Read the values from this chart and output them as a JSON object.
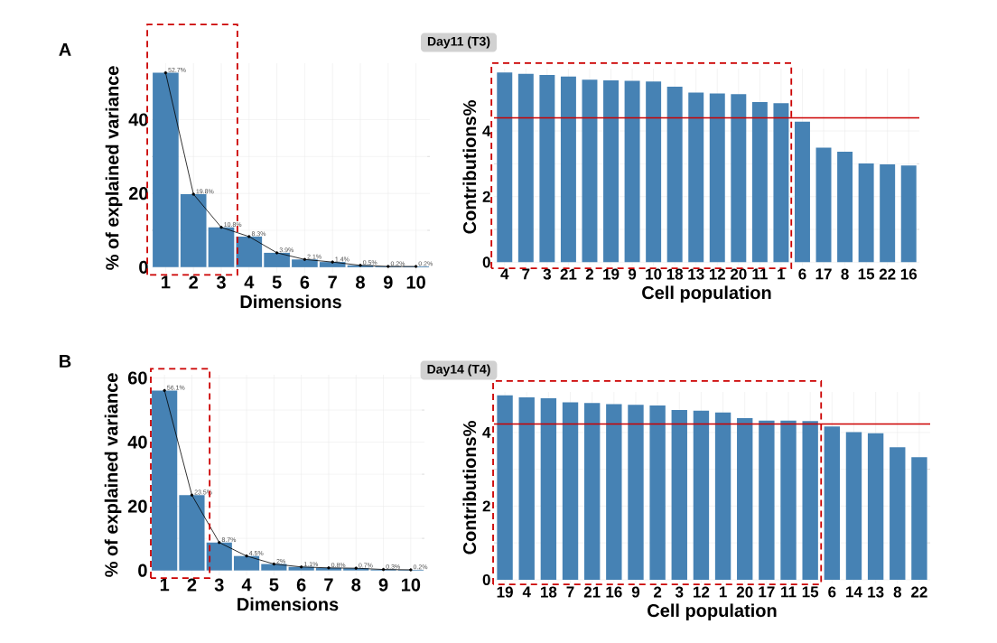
{
  "chart_data": [
    {
      "type": "bar",
      "annotations": [
        "A"
      ],
      "xlabel": "Dimensions",
      "ylabel": "% of explained variance",
      "categories": [
        "1",
        "2",
        "3",
        "4",
        "5",
        "6",
        "7",
        "8",
        "9",
        "10"
      ],
      "ylim": [
        -1.5,
        55.3
      ],
      "yticks": [
        0,
        20,
        40
      ],
      "grid": true,
      "series": [
        {
          "color": "#4682b4",
          "values": [
            52.7,
            19.8,
            10.8,
            8.3,
            3.9,
            2.1,
            1.4,
            0.5,
            0.2,
            0.2
          ],
          "value_labels": [
            "52.7%",
            "19.8%",
            "10.8%",
            "8.3%",
            "3.9%",
            "2.1%",
            "1.4%",
            "0.5%",
            "0.2%",
            "0.2%"
          ]
        },
        {
          "type": "line",
          "color": "#000000",
          "marker": "circle",
          "values": [
            52.7,
            19.8,
            10.8,
            8.3,
            3.9,
            2.1,
            1.4,
            0.5,
            0.2,
            0.2
          ]
        }
      ]
    },
    {
      "type": "bar",
      "title": "Day11 (T3)",
      "xlabel": "Cell population",
      "ylabel": "Contributions%",
      "categories": [
        "4",
        "7",
        "3",
        "21",
        "2",
        "19",
        "9",
        "10",
        "18",
        "13",
        "12",
        "20",
        "11",
        "1",
        "6",
        "17",
        "8",
        "15",
        "22",
        "16"
      ],
      "ylim": [
        -0.1,
        5.9
      ],
      "yticks": [
        0,
        2,
        4
      ],
      "grid": true,
      "series": [
        {
          "color": "#4682b4",
          "values": [
            5.78,
            5.74,
            5.71,
            5.66,
            5.56,
            5.54,
            5.53,
            5.51,
            5.35,
            5.17,
            5.14,
            5.12,
            4.88,
            4.85,
            4.28,
            3.49,
            3.37,
            3.01,
            2.98,
            2.95
          ]
        }
      ],
      "ref_lines": [
        {
          "axis": "y",
          "value": 4.4,
          "color": "#cc0000"
        }
      ]
    },
    {
      "type": "bar",
      "annotations": [
        "B"
      ],
      "xlabel": "Dimensions",
      "ylabel": "% of explained variance",
      "categories": [
        "1",
        "2",
        "3",
        "4",
        "5",
        "6",
        "7",
        "8",
        "9",
        "10"
      ],
      "ylim": [
        -1.5,
        61
      ],
      "yticks": [
        0,
        20,
        40,
        60
      ],
      "grid": true,
      "series": [
        {
          "color": "#4682b4",
          "values": [
            56.1,
            23.5,
            8.7,
            4.5,
            2,
            1.1,
            0.8,
            0.7,
            0.3,
            0.2
          ],
          "value_labels": [
            "56.1%",
            "23.5%",
            "8.7%",
            "4.5%",
            "2%",
            "1.1%",
            "0.8%",
            "0.7%",
            "0.3%",
            "0.2%"
          ]
        },
        {
          "type": "line",
          "color": "#000000",
          "marker": "circle",
          "values": [
            56.1,
            23.5,
            8.7,
            4.5,
            2,
            1.1,
            0.8,
            0.7,
            0.3,
            0.2
          ]
        }
      ]
    },
    {
      "type": "bar",
      "title": "Day14 (T4)",
      "xlabel": "Cell population",
      "ylabel": "Contributions%",
      "categories": [
        "19",
        "4",
        "18",
        "7",
        "21",
        "16",
        "9",
        "2",
        "3",
        "12",
        "1",
        "20",
        "17",
        "11",
        "15",
        "6",
        "14",
        "13",
        "8",
        "22"
      ],
      "ylim": [
        -0.1,
        5.1
      ],
      "yticks": [
        0,
        2,
        4
      ],
      "grid": true,
      "series": [
        {
          "color": "#4682b4",
          "values": [
            5.01,
            4.95,
            4.93,
            4.82,
            4.8,
            4.77,
            4.75,
            4.73,
            4.61,
            4.59,
            4.54,
            4.39,
            4.32,
            4.32,
            4.31,
            4.16,
            4.01,
            3.98,
            3.6,
            3.33
          ]
        }
      ],
      "ref_lines": [
        {
          "axis": "y",
          "value": 4.23,
          "color": "#cc0000"
        }
      ]
    }
  ]
}
